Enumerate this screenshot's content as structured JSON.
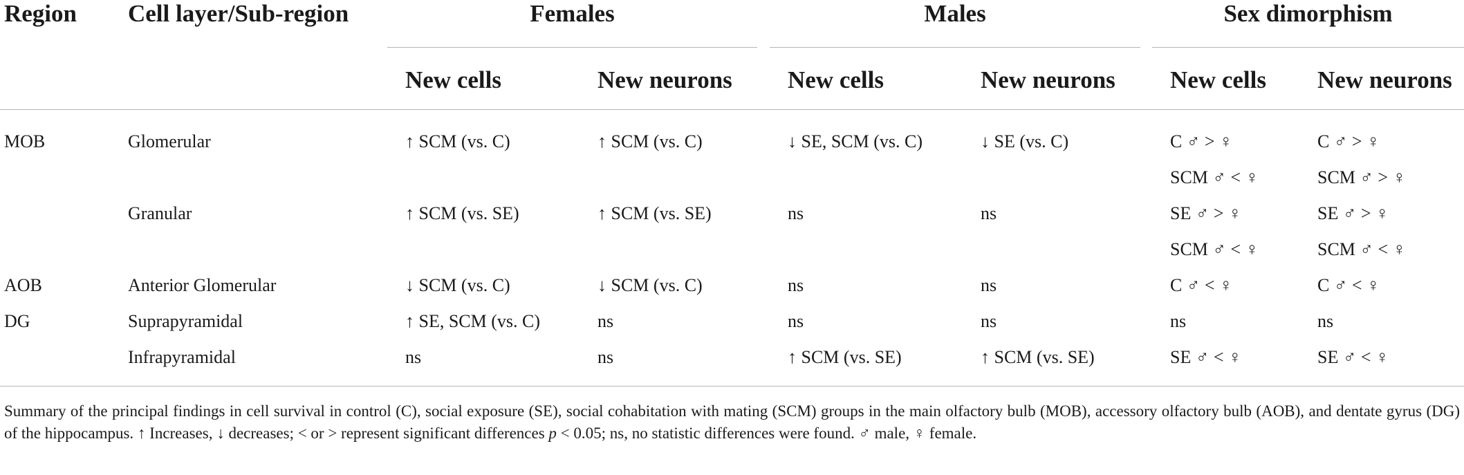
{
  "header": {
    "region": "Region",
    "cell_layer": "Cell layer/Sub-region",
    "groups": [
      {
        "label": "Females",
        "new_cells": "New cells",
        "new_neurons": "New neurons"
      },
      {
        "label": "Males",
        "new_cells": "New cells",
        "new_neurons": "New neurons"
      },
      {
        "label": "Sex dimorphism",
        "new_cells": "New cells",
        "new_neurons": "New neurons"
      }
    ]
  },
  "rows": [
    {
      "region": "MOB",
      "layer": "Glomerular",
      "f_cells": "↑ SCM (vs. C)",
      "f_neurons": "↑ SCM (vs. C)",
      "m_cells": "↓ SE, SCM (vs. C)",
      "m_neurons": "↓ SE (vs. C)",
      "sd_cells": "C ♂ > ♀",
      "sd_neurons": "C ♂ > ♀"
    },
    {
      "region": "",
      "layer": "",
      "f_cells": "",
      "f_neurons": "",
      "m_cells": "",
      "m_neurons": "",
      "sd_cells": "SCM ♂ < ♀",
      "sd_neurons": "SCM ♂ > ♀"
    },
    {
      "region": "",
      "layer": "Granular",
      "f_cells": "↑ SCM (vs. SE)",
      "f_neurons": "↑ SCM (vs. SE)",
      "m_cells": "ns",
      "m_neurons": "ns",
      "sd_cells": "SE ♂ > ♀",
      "sd_neurons": "SE ♂ > ♀"
    },
    {
      "region": "",
      "layer": "",
      "f_cells": "",
      "f_neurons": "",
      "m_cells": "",
      "m_neurons": "",
      "sd_cells": "SCM ♂ < ♀",
      "sd_neurons": "SCM ♂ < ♀"
    },
    {
      "region": "AOB",
      "layer": "Anterior Glomerular",
      "f_cells": "↓ SCM (vs. C)",
      "f_neurons": "↓ SCM (vs. C)",
      "m_cells": "ns",
      "m_neurons": "ns",
      "sd_cells": "C ♂ < ♀",
      "sd_neurons": "C ♂ < ♀"
    },
    {
      "region": "DG",
      "layer": "Suprapyramidal",
      "f_cells": "↑ SE, SCM (vs. C)",
      "f_neurons": "ns",
      "m_cells": "ns",
      "m_neurons": "ns",
      "sd_cells": "ns",
      "sd_neurons": "ns"
    },
    {
      "region": "",
      "layer": "Infrapyramidal",
      "f_cells": "ns",
      "f_neurons": "ns",
      "m_cells": "↑ SCM (vs. SE)",
      "m_neurons": "↑ SCM (vs. SE)",
      "sd_cells": "SE ♂ < ♀",
      "sd_neurons": "SE ♂ < ♀"
    }
  ],
  "footnote": {
    "part1": "Summary of the principal findings in cell survival in control (C), social exposure (SE), social cohabitation with mating (SCM) groups in the main olfactory bulb (MOB), accessory olfactory bulb (AOB), and dentate gyrus (DG) of the hippocampus. ↑ Increases, ↓ decreases; < or > represent significant differences ",
    "p": "p",
    "part2": " < 0.05; ns, no statistic differences were found. ♂ male, ♀ female."
  }
}
